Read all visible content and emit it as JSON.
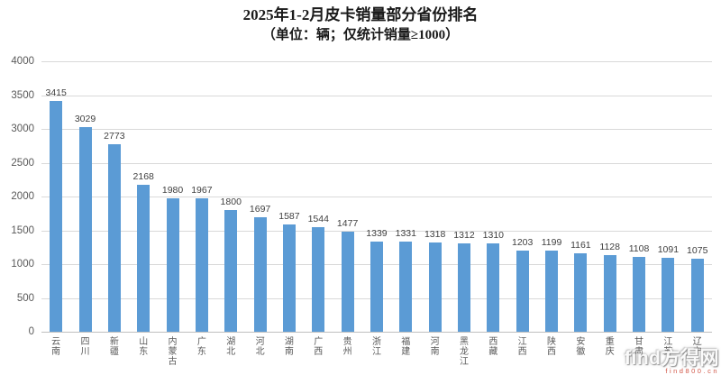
{
  "page": {
    "title_line1": "2025年1-2月皮卡销量部分省份排名",
    "title_line2": "（单位：辆；仅统计销量≥1000）"
  },
  "colors": {
    "bar": "#5B9BD5",
    "gridline": "#D9D9D9",
    "axis": "#BFBFBF"
  },
  "watermark": {
    "logo": "find方得网",
    "sub": "find800.cn"
  },
  "chart_data": {
    "type": "bar",
    "title": "2025年1-2月皮卡销量部分省份排名",
    "subtitle": "（单位：辆；仅统计销量≥1000）",
    "categories": [
      "云南",
      "四川",
      "新疆",
      "山东",
      "内蒙古",
      "广东",
      "湖北",
      "河北",
      "湖南",
      "广西",
      "贵州",
      "浙江",
      "福建",
      "河南",
      "黑龙江",
      "西藏",
      "江西",
      "陕西",
      "安徽",
      "重庆",
      "甘肃",
      "江苏",
      "辽宁"
    ],
    "values": [
      3415,
      3029,
      2773,
      2168,
      1980,
      1967,
      1800,
      1697,
      1587,
      1544,
      1477,
      1339,
      1331,
      1318,
      1312,
      1310,
      1203,
      1199,
      1161,
      1128,
      1108,
      1091,
      1075
    ],
    "xlabel": "",
    "ylabel": "",
    "ylim": [
      0,
      4000
    ],
    "ytick_step": 500,
    "grid": true,
    "legend": false,
    "bar_color": "#5B9BD5",
    "data_labels": true
  }
}
